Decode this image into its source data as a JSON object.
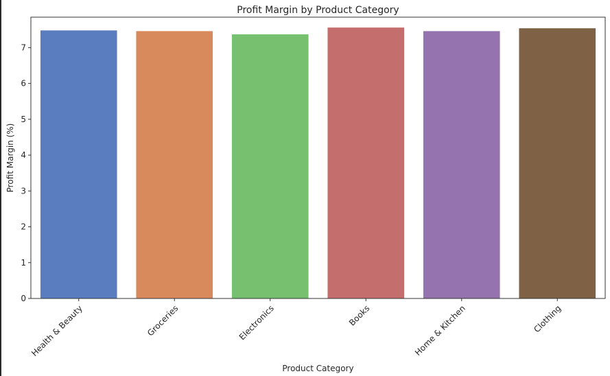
{
  "chart_data": {
    "type": "bar",
    "title": "Profit Margin by Product Category",
    "xlabel": "Product Category",
    "ylabel": "Profit Margin (%)",
    "categories": [
      "Health & Beauty",
      "Groceries",
      "Electronics",
      "Books",
      "Home & Kitchen",
      "Clothing"
    ],
    "values": [
      7.48,
      7.46,
      7.37,
      7.56,
      7.46,
      7.54
    ],
    "colors": [
      "#5a7dc0",
      "#d88a5c",
      "#76c070",
      "#c56e6e",
      "#9473ae",
      "#7f6146"
    ],
    "ylim": [
      0,
      7.85
    ],
    "yticks": [
      0,
      1,
      2,
      3,
      4,
      5,
      6,
      7
    ],
    "grid": false,
    "legend": "none"
  }
}
